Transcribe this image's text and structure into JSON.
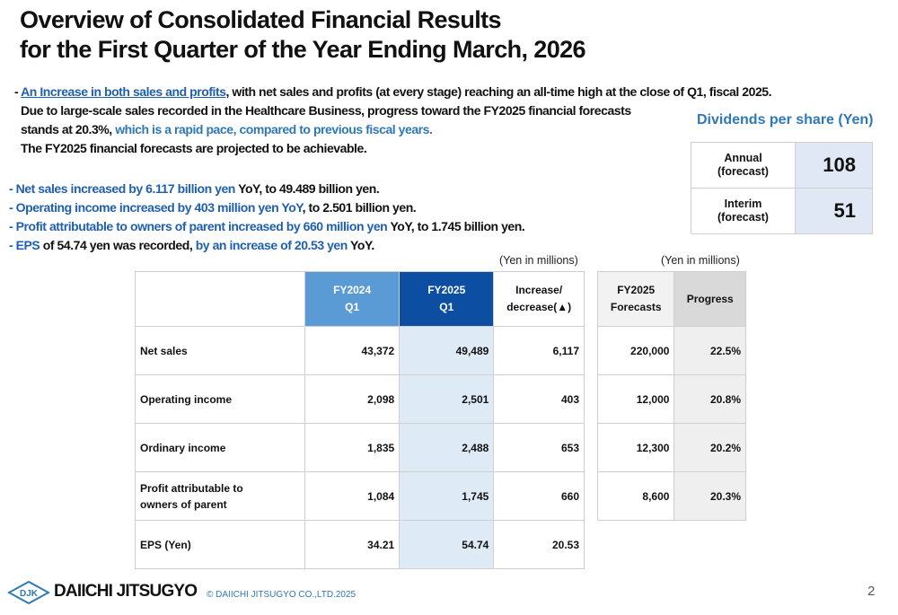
{
  "header": {
    "title_lines": [
      "Overview of Consolidated Financial Results",
      "for the First Quarter of the Year Ending March, 2026"
    ]
  },
  "summary": {
    "lines": [
      [
        "- ",
        "An Increase in both sales and profits",
        ", with net sales and profits (at every stage) reaching an all-time high at the close of Q1, fiscal 2025."
      ],
      [
        "Due to large-scale sales recorded in the Healthcare Business, progress toward the FY2025 financial forecasts"
      ],
      [
        "stands at 20.3%, ",
        "which is a rapid pace, compared to previous fiscal years."
      ],
      [
        "The FY2025 financial forecasts are projected to be achievable."
      ]
    ],
    "bullets": [
      [
        "- Net sales increased by 6.117 billion yen",
        " YoY, to 49.489 billion yen."
      ],
      [
        "- Operating income increased by 403 million yen YoY",
        ", to 2.501 billion yen."
      ],
      [
        "- Profit attributable to owners of parent increased by 660 million yen",
        " YoY, to 1.745 billion yen."
      ],
      [
        "- EPS",
        " of 54.74 yen was recorded, ",
        "by an increase of 20.53 yen",
        " YoY."
      ]
    ]
  },
  "dividends": {
    "title": "Dividends per share (Yen)",
    "rows": [
      [
        "Annual\n(forecast)",
        "108"
      ],
      [
        "Interim\n(forecast)",
        "51"
      ]
    ]
  },
  "results_table": {
    "unit": "(Yen in millions)",
    "header": [
      "",
      "FY2024\nQ1",
      "FY2025\nQ1",
      "Increase/\ndecrease(▲)"
    ],
    "rows": [
      [
        "Net sales",
        "43,372",
        "49,489",
        "6,117"
      ],
      [
        "Operating income",
        "2,098",
        "2,501",
        "403"
      ],
      [
        "Ordinary income",
        "1,835",
        "2,488",
        "653"
      ],
      [
        "Profit attributable to\nowners of parent",
        "1,084",
        "1,745",
        "660"
      ],
      [
        "EPS (Yen)",
        "34.21",
        "54.74",
        "20.53"
      ]
    ]
  },
  "forecast_table": {
    "unit": "(Yen in millions)",
    "header": [
      "FY2025\nForecasts",
      "Progress"
    ],
    "rows": [
      [
        "220,000",
        "22.5%"
      ],
      [
        "12,000",
        "20.8%"
      ],
      [
        "12,300",
        "20.2%"
      ],
      [
        "8,600",
        "20.3%"
      ]
    ]
  },
  "footer": {
    "logo": "DJK",
    "company": "DAIICHI JITSUGYO",
    "copyright": "© DAIICHI JITSUGYO CO.,LTD.2025",
    "page": "2"
  }
}
